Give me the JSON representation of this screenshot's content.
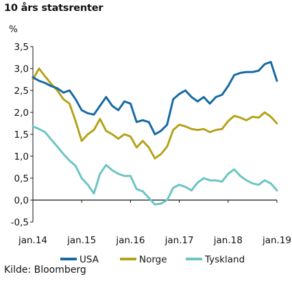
{
  "title": "10 års statsrenter",
  "source": "Kilde: Bloomberg",
  "chart_data": {
    "type": "line",
    "title": "10 års statsrenter",
    "ylabel": "%",
    "xlabel": "",
    "ylim": [
      -0.5,
      3.5
    ],
    "yticks": [
      -0.5,
      0.0,
      0.5,
      1.0,
      1.5,
      2.0,
      2.5,
      3.0,
      3.5
    ],
    "ytick_labels": [
      "-0,5",
      "0,0",
      "0,5",
      "1,0",
      "1,5",
      "2,0",
      "2,5",
      "3,0",
      "3,5"
    ],
    "xlim": [
      2014.0,
      2019.0
    ],
    "xticks": [
      2014,
      2015,
      2016,
      2017,
      2018,
      2019
    ],
    "xtick_labels": [
      "jan.14",
      "jan.15",
      "jan.16",
      "jan.17",
      "jan.18",
      "jan.19"
    ],
    "grid": false,
    "legend_position": "bottom",
    "x": [
      2014.0,
      2014.125,
      2014.25,
      2014.375,
      2014.5,
      2014.625,
      2014.75,
      2014.875,
      2015.0,
      2015.125,
      2015.25,
      2015.375,
      2015.5,
      2015.625,
      2015.75,
      2015.875,
      2016.0,
      2016.125,
      2016.25,
      2016.375,
      2016.5,
      2016.625,
      2016.75,
      2016.875,
      2017.0,
      2017.125,
      2017.25,
      2017.375,
      2017.5,
      2017.625,
      2017.75,
      2017.875,
      2018.0,
      2018.125,
      2018.25,
      2018.375,
      2018.5,
      2018.625,
      2018.75,
      2018.875,
      2019.0
    ],
    "series": [
      {
        "name": "USA",
        "color": "#1469a4",
        "values": [
          2.8,
          2.72,
          2.67,
          2.6,
          2.55,
          2.45,
          2.5,
          2.3,
          2.05,
          1.98,
          1.95,
          2.15,
          2.35,
          2.15,
          2.05,
          2.25,
          2.2,
          1.78,
          1.82,
          1.78,
          1.5,
          1.58,
          1.72,
          2.3,
          2.42,
          2.5,
          2.35,
          2.25,
          2.35,
          2.2,
          2.35,
          2.4,
          2.6,
          2.85,
          2.9,
          2.92,
          2.92,
          2.95,
          3.1,
          3.15,
          2.72
        ]
      },
      {
        "name": "Norge",
        "color": "#b5a219",
        "values": [
          2.75,
          3.0,
          2.82,
          2.65,
          2.5,
          2.3,
          2.2,
          1.8,
          1.35,
          1.5,
          1.6,
          1.85,
          1.58,
          1.5,
          1.4,
          1.5,
          1.45,
          1.2,
          1.35,
          1.2,
          0.95,
          1.05,
          1.22,
          1.6,
          1.72,
          1.68,
          1.62,
          1.6,
          1.62,
          1.55,
          1.6,
          1.62,
          1.8,
          1.92,
          1.88,
          1.82,
          1.9,
          1.88,
          2.0,
          1.9,
          1.75
        ]
      },
      {
        "name": "Tyskland",
        "color": "#6cc4c4",
        "values": [
          1.68,
          1.62,
          1.55,
          1.38,
          1.22,
          1.05,
          0.9,
          0.78,
          0.5,
          0.35,
          0.15,
          0.6,
          0.8,
          0.68,
          0.6,
          0.55,
          0.55,
          0.25,
          0.2,
          0.05,
          -0.1,
          -0.08,
          0.0,
          0.28,
          0.35,
          0.3,
          0.22,
          0.4,
          0.5,
          0.45,
          0.45,
          0.42,
          0.6,
          0.7,
          0.55,
          0.45,
          0.38,
          0.35,
          0.45,
          0.38,
          0.22
        ]
      }
    ]
  }
}
